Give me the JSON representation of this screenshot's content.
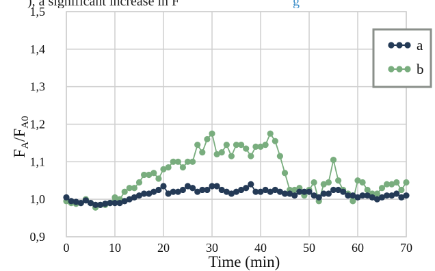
{
  "caption_fragment": {
    "text": "), a significant increase in F",
    "highlight": "g"
  },
  "chart_data": {
    "type": "line",
    "title": "",
    "xlabel": "Time (min)",
    "ylabel": {
      "main": "F",
      "sub1": "A",
      "sep": "/F",
      "sub2": "A0"
    },
    "xlim": [
      0,
      70
    ],
    "ylim": [
      0.9,
      1.5
    ],
    "x_ticks": [
      0,
      10,
      20,
      30,
      40,
      50,
      60,
      70
    ],
    "x_tick_labels": [
      "0",
      "10",
      "20",
      "30",
      "40",
      "50",
      "60",
      "70"
    ],
    "y_ticks": [
      0.9,
      1.0,
      1.1,
      1.2,
      1.3,
      1.4,
      1.5
    ],
    "y_tick_labels": [
      "0,9",
      "1,0",
      "1,1",
      "1,2",
      "1,3",
      "1,4",
      "1,5"
    ],
    "grid": true,
    "legend": "top-right",
    "x": [
      0,
      1,
      2,
      3,
      4,
      5,
      6,
      7,
      8,
      9,
      10,
      11,
      12,
      13,
      14,
      15,
      16,
      17,
      18,
      19,
      20,
      21,
      22,
      23,
      24,
      25,
      26,
      27,
      28,
      29,
      30,
      31,
      32,
      33,
      34,
      35,
      36,
      37,
      38,
      39,
      40,
      41,
      42,
      43,
      44,
      45,
      46,
      47,
      48,
      49,
      50,
      51,
      52,
      53,
      54,
      55,
      56,
      57,
      58,
      59,
      60,
      61,
      62,
      63,
      64,
      65,
      66,
      67,
      68,
      69,
      70
    ],
    "series": [
      {
        "name": "a",
        "color": "#243a56",
        "values": [
          1.005,
          0.995,
          0.993,
          0.99,
          0.997,
          0.99,
          0.985,
          0.985,
          0.988,
          0.99,
          0.99,
          0.99,
          0.995,
          1.0,
          1.005,
          1.01,
          1.015,
          1.015,
          1.02,
          1.025,
          1.035,
          1.015,
          1.02,
          1.02,
          1.025,
          1.035,
          1.03,
          1.02,
          1.025,
          1.025,
          1.035,
          1.035,
          1.025,
          1.02,
          1.015,
          1.02,
          1.025,
          1.03,
          1.04,
          1.02,
          1.02,
          1.025,
          1.02,
          1.025,
          1.02,
          1.015,
          1.015,
          1.01,
          1.02,
          1.02,
          1.02,
          1.01,
          1.005,
          1.015,
          1.015,
          1.025,
          1.025,
          1.02,
          1.01,
          1.01,
          1.005,
          1.01,
          1.01,
          1.005,
          1.0,
          1.005,
          1.01,
          1.01,
          1.015,
          1.005,
          1.01
        ]
      },
      {
        "name": "b",
        "color": "#79ad7e",
        "values": [
          0.995,
          0.99,
          0.988,
          0.99,
          1.0,
          0.99,
          0.978,
          0.985,
          0.985,
          0.99,
          1.005,
          1.0,
          1.02,
          1.03,
          1.03,
          1.045,
          1.065,
          1.065,
          1.07,
          1.055,
          1.08,
          1.085,
          1.1,
          1.1,
          1.085,
          1.1,
          1.1,
          1.145,
          1.125,
          1.16,
          1.175,
          1.12,
          1.125,
          1.145,
          1.115,
          1.145,
          1.145,
          1.135,
          1.115,
          1.14,
          1.14,
          1.145,
          1.175,
          1.155,
          1.115,
          1.07,
          1.025,
          1.025,
          1.03,
          1.01,
          1.025,
          1.045,
          0.995,
          1.04,
          1.045,
          1.105,
          1.05,
          1.025,
          1.015,
          0.995,
          1.05,
          1.045,
          1.025,
          1.015,
          1.015,
          1.03,
          1.04,
          1.04,
          1.045,
          1.025,
          1.045
        ]
      }
    ]
  }
}
